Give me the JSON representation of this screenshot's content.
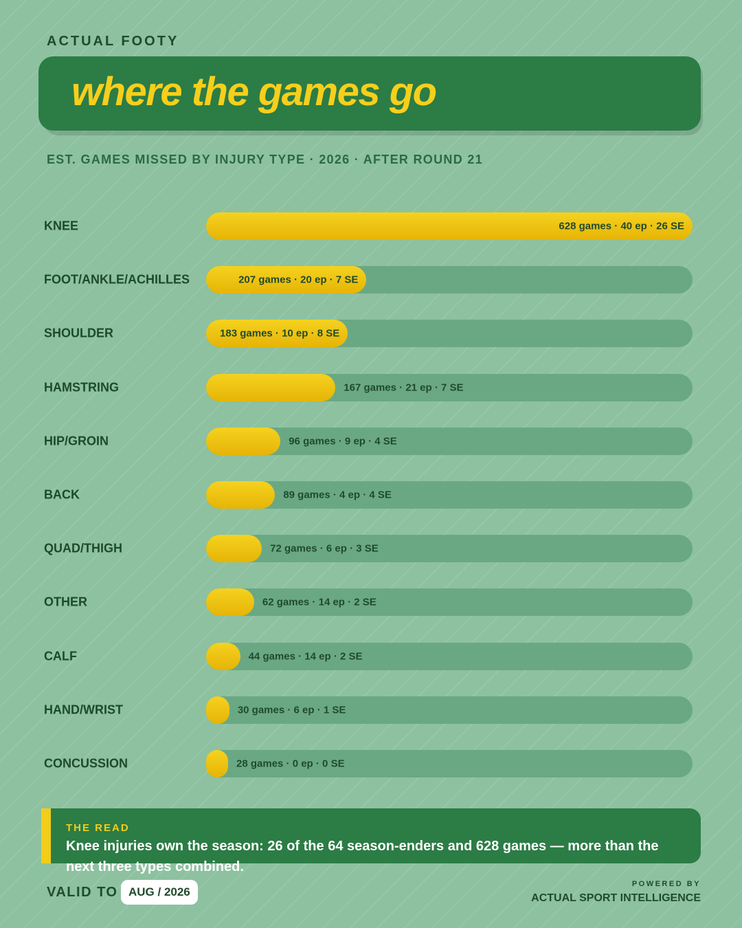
{
  "header": {
    "brand": "ACTUAL FOOTY",
    "title": "where the games go",
    "subtitle": "EST. GAMES MISSED BY INJURY TYPE · 2026 · AFTER ROUND 21"
  },
  "colors": {
    "background": "#8dc1a0",
    "panel": "#2c7c45",
    "accent": "#f2cd1a",
    "track": "#6aa884",
    "text_dark": "#1f4b2c"
  },
  "chart_data": {
    "type": "bar",
    "orientation": "horizontal",
    "xlim": [
      0,
      628
    ],
    "grid": false,
    "categories": [
      "KNEE",
      "FOOT/ANKLE/ACHILLES",
      "SHOULDER",
      "HAMSTRING",
      "HIP/GROIN",
      "BACK",
      "QUAD/THIGH",
      "OTHER",
      "CALF",
      "HAND/WRIST",
      "CONCUSSION"
    ],
    "values": [
      628,
      207,
      183,
      167,
      96,
      89,
      72,
      62,
      44,
      30,
      28
    ],
    "labels": [
      "628 games · 40 ep · 26 SE",
      "207 games · 20 ep · 7 SE",
      "183 games · 10 ep · 8 SE",
      "167 games · 21 ep · 7 SE",
      "96 games · 9 ep · 4 SE",
      "89 games · 4 ep · 4 SE",
      "72 games · 6 ep · 3 SE",
      "62 games · 14 ep · 2 SE",
      "44 games · 14 ep · 2 SE",
      "30 games · 6 ep · 1 SE",
      "28 games · 0 ep · 0 SE"
    ]
  },
  "read": {
    "label": "THE READ",
    "text": "Knee injuries own the season: 26 of the 64 season-enders and 628 games — more than the next three types combined."
  },
  "footer": {
    "valid_label": "VALID TO",
    "valid_value": "AUG / 2026",
    "powered_label": "POWERED BY",
    "powered_name": "ACTUAL SPORT INTELLIGENCE"
  }
}
